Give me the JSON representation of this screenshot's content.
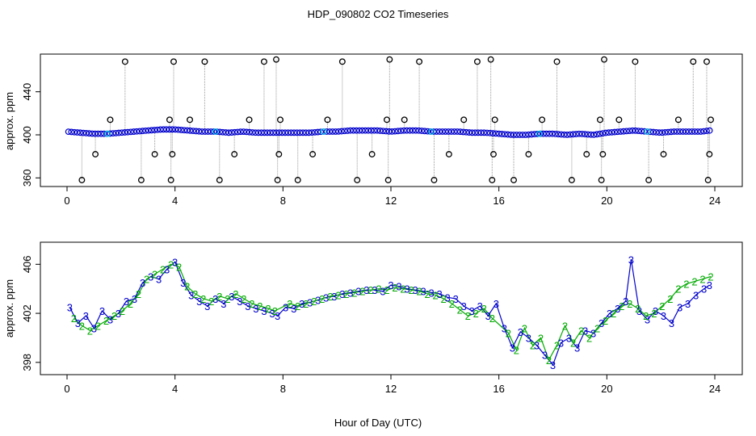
{
  "title": "HDP_090802  CO2 Timeseries",
  "xlabel": "Hour of Day (UTC)",
  "colors": {
    "circle_black": "#000000",
    "circle_blue": "#0000cc",
    "circle_cyan": "#00c8e0",
    "series2": "#00aa00",
    "series3": "#0000cc",
    "spike_line": "#9a9a9a"
  },
  "chart_data": [
    {
      "type": "scatter",
      "name": "top",
      "ylabel": "approx. ppm",
      "xlim": [
        0,
        24
      ],
      "ylim": [
        352,
        475
      ],
      "x_ticks": [
        0,
        4,
        8,
        12,
        16,
        20,
        24
      ],
      "y_ticks": [
        360,
        400,
        440
      ],
      "baseline_series": {
        "x": [
          0.0,
          0.5,
          1.0,
          1.5,
          2.0,
          2.5,
          3.0,
          3.5,
          4.0,
          4.5,
          5.0,
          5.5,
          6.0,
          6.5,
          7.0,
          7.5,
          8.0,
          8.5,
          9.0,
          9.5,
          10.0,
          10.5,
          11.0,
          11.5,
          12.0,
          12.5,
          13.0,
          13.5,
          14.0,
          14.5,
          15.0,
          15.5,
          16.0,
          16.5,
          17.0,
          17.5,
          18.0,
          18.5,
          19.0,
          19.5,
          20.0,
          20.5,
          21.0,
          21.5,
          22.0,
          22.5,
          23.0,
          23.5,
          23.8
        ],
        "y": [
          403,
          402,
          401,
          401,
          402,
          403,
          404,
          405,
          405,
          404,
          403,
          403,
          402,
          403,
          402,
          402,
          402,
          402,
          402,
          403,
          403,
          404,
          404,
          404,
          403,
          404,
          404,
          403,
          403,
          403,
          402,
          402,
          401,
          400,
          400,
          401,
          401,
          400,
          401,
          400,
          402,
          403,
          404,
          403,
          402,
          403,
          403,
          403,
          404
        ]
      },
      "spikes": {
        "x": [
          0.55,
          1.05,
          1.6,
          2.15,
          2.75,
          3.25,
          3.8,
          3.85,
          3.9,
          3.95,
          4.55,
          5.1,
          5.65,
          6.2,
          6.75,
          7.3,
          7.75,
          7.8,
          7.85,
          7.9,
          8.55,
          9.1,
          9.65,
          10.2,
          10.75,
          11.3,
          11.85,
          11.9,
          11.95,
          12.5,
          13.05,
          13.6,
          14.15,
          14.7,
          15.2,
          15.7,
          15.75,
          15.8,
          15.85,
          16.55,
          17.1,
          17.6,
          18.15,
          18.7,
          19.25,
          19.75,
          19.8,
          19.85,
          19.9,
          20.45,
          21.05,
          21.55,
          22.1,
          22.65,
          23.2,
          23.7,
          23.75,
          23.8,
          23.85
        ],
        "y": [
          358,
          382,
          414,
          468,
          358,
          382,
          414,
          358,
          382,
          468,
          414,
          468,
          358,
          382,
          414,
          468,
          470,
          358,
          382,
          414,
          358,
          382,
          414,
          468,
          358,
          382,
          414,
          358,
          470,
          414,
          468,
          358,
          382,
          414,
          468,
          470,
          358,
          382,
          414,
          358,
          382,
          414,
          468,
          358,
          382,
          414,
          358,
          382,
          470,
          414,
          468,
          358,
          382,
          414,
          468,
          468,
          358,
          382,
          414
        ]
      }
    },
    {
      "type": "line",
      "name": "bottom",
      "ylabel": "approx. ppm",
      "xlim": [
        0,
        24
      ],
      "ylim": [
        397,
        407.8
      ],
      "x_ticks": [
        0,
        4,
        8,
        12,
        16,
        20,
        24
      ],
      "y_ticks": [
        398,
        402,
        406
      ],
      "series": [
        {
          "marker": "3",
          "x": [
            0.1,
            0.4,
            0.7,
            1.0,
            1.3,
            1.6,
            1.9,
            2.2,
            2.5,
            2.8,
            3.1,
            3.4,
            3.7,
            4.0,
            4.3,
            4.6,
            4.9,
            5.2,
            5.5,
            5.8,
            6.1,
            6.4,
            6.7,
            7.0,
            7.3,
            7.6,
            7.8,
            8.1,
            8.4,
            8.7,
            9.0,
            9.3,
            9.6,
            9.9,
            10.2,
            10.5,
            10.8,
            11.1,
            11.4,
            11.7,
            12.0,
            12.3,
            12.6,
            12.9,
            13.2,
            13.5,
            13.8,
            14.1,
            14.4,
            14.7,
            15.0,
            15.3,
            15.6,
            15.9,
            16.2,
            16.5,
            16.8,
            17.1,
            17.4,
            17.7,
            18.0,
            18.3,
            18.6,
            18.9,
            19.2,
            19.5,
            19.8,
            20.1,
            20.4,
            20.7,
            20.9,
            21.2,
            21.5,
            21.8,
            22.1,
            22.4,
            22.7,
            23.0,
            23.3,
            23.6,
            23.8
          ],
          "y": [
            402.5,
            401.2,
            401.8,
            400.8,
            402.2,
            401.5,
            402.0,
            403.0,
            403.2,
            404.5,
            405.0,
            404.8,
            405.6,
            406.2,
            404.5,
            403.5,
            403.0,
            402.6,
            403.2,
            402.8,
            403.4,
            403.0,
            402.6,
            402.4,
            402.2,
            402.0,
            401.8,
            402.5,
            402.4,
            402.8,
            402.9,
            403.1,
            403.3,
            403.4,
            403.6,
            403.7,
            403.8,
            403.9,
            403.9,
            403.8,
            404.3,
            404.2,
            404.0,
            403.9,
            403.8,
            403.7,
            403.6,
            403.3,
            403.2,
            402.6,
            402.2,
            402.6,
            401.8,
            402.8,
            400.8,
            399.2,
            400.5,
            400.0,
            399.4,
            398.6,
            397.8,
            399.6,
            400.0,
            399.2,
            400.6,
            400.4,
            401.2,
            402.0,
            402.4,
            403.0,
            406.4,
            402.2,
            401.5,
            402.2,
            401.8,
            401.2,
            402.5,
            402.8,
            403.5,
            404.0,
            404.3
          ]
        },
        {
          "marker": "2",
          "x": [
            0.25,
            0.55,
            0.85,
            1.15,
            1.45,
            1.75,
            2.05,
            2.35,
            2.65,
            2.95,
            3.25,
            3.55,
            3.85,
            4.15,
            4.45,
            4.75,
            5.05,
            5.35,
            5.65,
            5.95,
            6.25,
            6.55,
            6.85,
            7.15,
            7.45,
            7.7,
            8.25,
            8.55,
            8.85,
            9.15,
            9.45,
            9.75,
            10.05,
            10.35,
            10.65,
            10.95,
            11.25,
            11.55,
            11.85,
            12.15,
            12.45,
            12.75,
            13.05,
            13.35,
            13.65,
            13.95,
            14.25,
            14.55,
            14.85,
            15.15,
            15.45,
            15.75,
            16.35,
            16.65,
            16.95,
            17.25,
            17.55,
            17.85,
            18.15,
            18.45,
            18.75,
            19.05,
            19.35,
            19.65,
            19.95,
            20.25,
            20.55,
            20.85,
            21.15,
            21.45,
            21.75,
            22.05,
            22.35,
            22.65,
            22.95,
            23.25,
            23.55,
            23.85
          ],
          "y": [
            401.6,
            401.0,
            400.6,
            401.0,
            401.4,
            401.8,
            402.2,
            402.8,
            403.6,
            404.8,
            405.2,
            405.6,
            406.0,
            405.8,
            404.2,
            403.6,
            403.2,
            403.0,
            403.4,
            403.2,
            403.6,
            403.2,
            402.8,
            402.6,
            402.4,
            402.2,
            402.8,
            402.6,
            402.8,
            403.0,
            403.2,
            403.4,
            403.5,
            403.6,
            403.7,
            403.8,
            403.9,
            404.0,
            403.9,
            404.1,
            404.0,
            403.9,
            403.8,
            403.6,
            403.5,
            403.2,
            402.8,
            402.3,
            401.8,
            402.0,
            402.4,
            401.6,
            400.4,
            399.0,
            400.8,
            399.4,
            400.0,
            398.2,
            399.4,
            401.0,
            399.6,
            400.6,
            400.0,
            400.8,
            401.4,
            402.0,
            402.6,
            402.8,
            402.4,
            401.8,
            402.0,
            402.6,
            403.2,
            404.0,
            404.4,
            404.6,
            404.8,
            405.0
          ]
        }
      ]
    }
  ]
}
